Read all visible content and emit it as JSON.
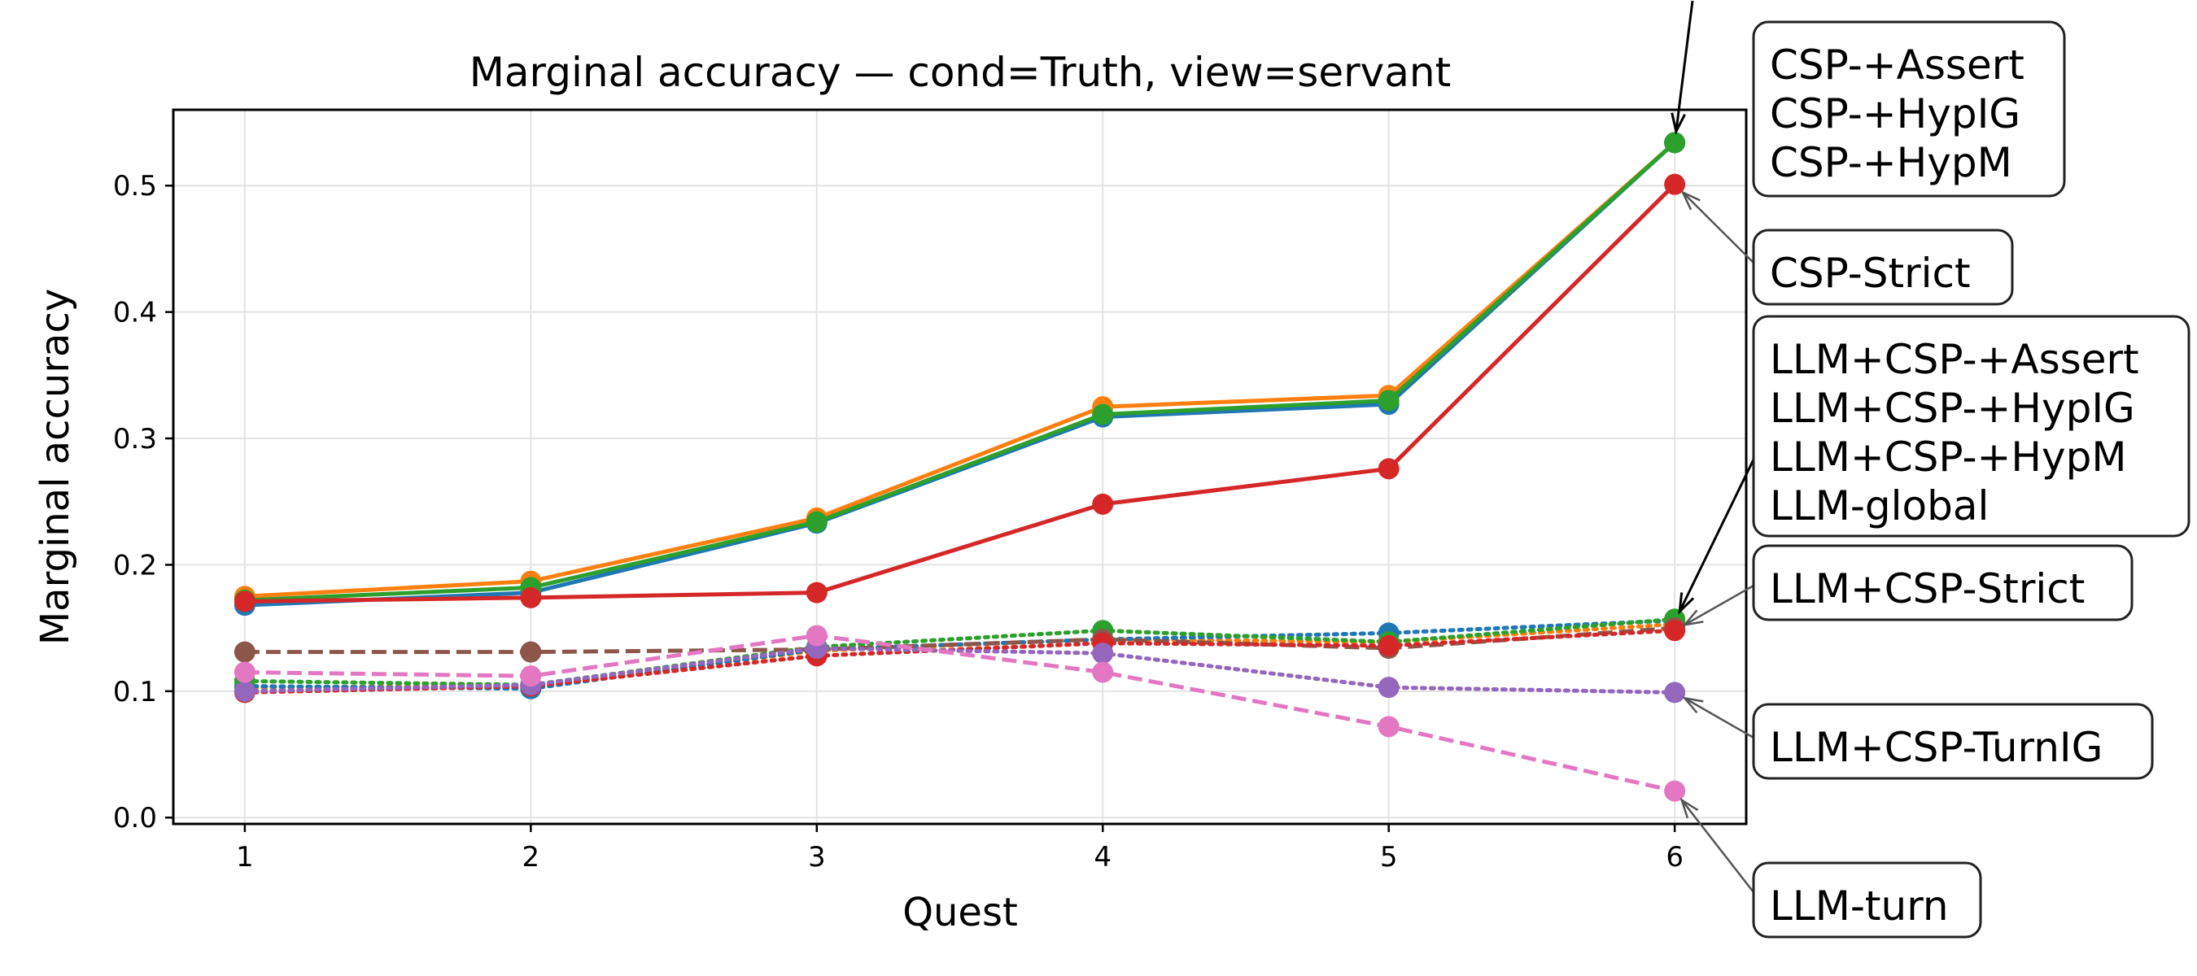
{
  "chart_data": {
    "type": "line",
    "title": "Marginal accuracy — cond=Truth, view=servant",
    "xlabel": "Quest",
    "ylabel": "Marginal accuracy",
    "x": [
      1,
      2,
      3,
      4,
      5,
      6
    ],
    "xlim": [
      0.75,
      6.25
    ],
    "ylim": [
      -0.005,
      0.56
    ],
    "x_ticks": [
      "1",
      "2",
      "3",
      "4",
      "5",
      "6"
    ],
    "y_ticks": [
      "0.0",
      "0.1",
      "0.2",
      "0.3",
      "0.4",
      "0.5"
    ],
    "grid": true,
    "series": [
      {
        "name": "CSP-+Assert",
        "color": "#ff7f0e",
        "style": "solid",
        "values": [
          0.175,
          0.187,
          0.237,
          0.325,
          0.334,
          0.534
        ]
      },
      {
        "name": "CSP-+HypIG",
        "color": "#1f77b4",
        "style": "solid",
        "values": [
          0.168,
          0.178,
          0.233,
          0.317,
          0.327,
          0.534
        ]
      },
      {
        "name": "CSP-+HypM",
        "color": "#2ca02c",
        "style": "solid",
        "values": [
          0.172,
          0.182,
          0.234,
          0.319,
          0.33,
          0.534
        ]
      },
      {
        "name": "CSP-Strict",
        "color": "#d62728",
        "style": "solid",
        "values": [
          0.171,
          0.174,
          0.178,
          0.248,
          0.276,
          0.501
        ]
      },
      {
        "name": "LLM+CSP-+Assert",
        "color": "#ff7f0e",
        "style": "dotted",
        "values": [
          0.103,
          0.104,
          0.132,
          0.141,
          0.139,
          0.153
        ]
      },
      {
        "name": "LLM+CSP-+HypIG",
        "color": "#1f77b4",
        "style": "dotted",
        "values": [
          0.104,
          0.102,
          0.133,
          0.141,
          0.146,
          0.156
        ]
      },
      {
        "name": "LLM+CSP-+HypM",
        "color": "#2ca02c",
        "style": "dotted",
        "values": [
          0.108,
          0.105,
          0.135,
          0.148,
          0.139,
          0.157
        ]
      },
      {
        "name": "LLM-global",
        "color": "#8c564b",
        "style": "dashed",
        "values": [
          0.131,
          0.131,
          0.133,
          0.141,
          0.134,
          0.15
        ]
      },
      {
        "name": "LLM+CSP-Strict",
        "color": "#d62728",
        "style": "dotted",
        "values": [
          0.099,
          0.104,
          0.128,
          0.138,
          0.136,
          0.148
        ]
      },
      {
        "name": "LLM+CSP-TurnIG",
        "color": "#9467bd",
        "style": "dotted",
        "values": [
          0.1,
          0.105,
          0.134,
          0.13,
          0.103,
          0.099
        ]
      },
      {
        "name": "LLM-turn",
        "color": "#e377c2",
        "style": "dashed",
        "values": [
          0.115,
          0.112,
          0.144,
          0.115,
          0.072,
          0.021
        ]
      }
    ],
    "annotations": [
      {
        "lines": [
          "CSP-+Assert",
          "CSP-+HypIG",
          "CSP-+HypM"
        ],
        "x": 6,
        "y": 0.534
      },
      {
        "lines": [
          "CSP-Strict"
        ],
        "x": 6,
        "y": 0.501
      },
      {
        "lines": [
          "LLM+CSP-+Assert",
          "LLM+CSP-+HypIG",
          "LLM+CSP-+HypM",
          "LLM-global"
        ],
        "x": 6,
        "y": 0.155
      },
      {
        "lines": [
          "LLM+CSP-Strict"
        ],
        "x": 6,
        "y": 0.148
      },
      {
        "lines": [
          "LLM+CSP-TurnIG"
        ],
        "x": 6,
        "y": 0.099
      },
      {
        "lines": [
          "LLM-turn"
        ],
        "x": 6,
        "y": 0.021
      }
    ]
  }
}
